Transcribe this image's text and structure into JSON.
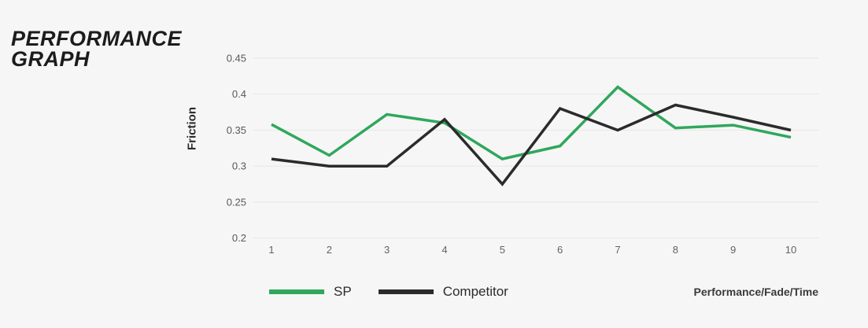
{
  "page": {
    "background_color": "#f6f6f6",
    "grid_color": "#e7e7e7"
  },
  "title": {
    "line1": "PERFORMANCE",
    "line2": "GRAPH"
  },
  "chart_data": {
    "type": "line",
    "x": [
      1,
      2,
      3,
      4,
      5,
      6,
      7,
      8,
      9,
      10
    ],
    "x_labels": [
      "1",
      "2",
      "3",
      "4",
      "5",
      "6",
      "7",
      "8",
      "9",
      "10"
    ],
    "series": [
      {
        "name": "SP",
        "color": "#2fa75d",
        "values": [
          0.358,
          0.315,
          0.372,
          0.36,
          0.31,
          0.328,
          0.41,
          0.353,
          0.357,
          0.34
        ]
      },
      {
        "name": "Competitor",
        "color": "#2b2b2b",
        "values": [
          0.31,
          0.3,
          0.3,
          0.365,
          0.275,
          0.38,
          0.35,
          0.385,
          0.368,
          0.35
        ]
      }
    ],
    "title": "",
    "ylabel": "Friction",
    "xlabel": "Performance/Fade/Time",
    "ylim": [
      0.2,
      0.45
    ],
    "yticks": [
      0.45,
      0.4,
      0.35,
      0.3,
      0.25,
      0.2
    ],
    "ytick_labels": [
      "0.45",
      "0.4",
      "0.35",
      "0.3",
      "0.25",
      "0.2"
    ],
    "grid": "horizontal",
    "legend_position": "bottom-left"
  }
}
